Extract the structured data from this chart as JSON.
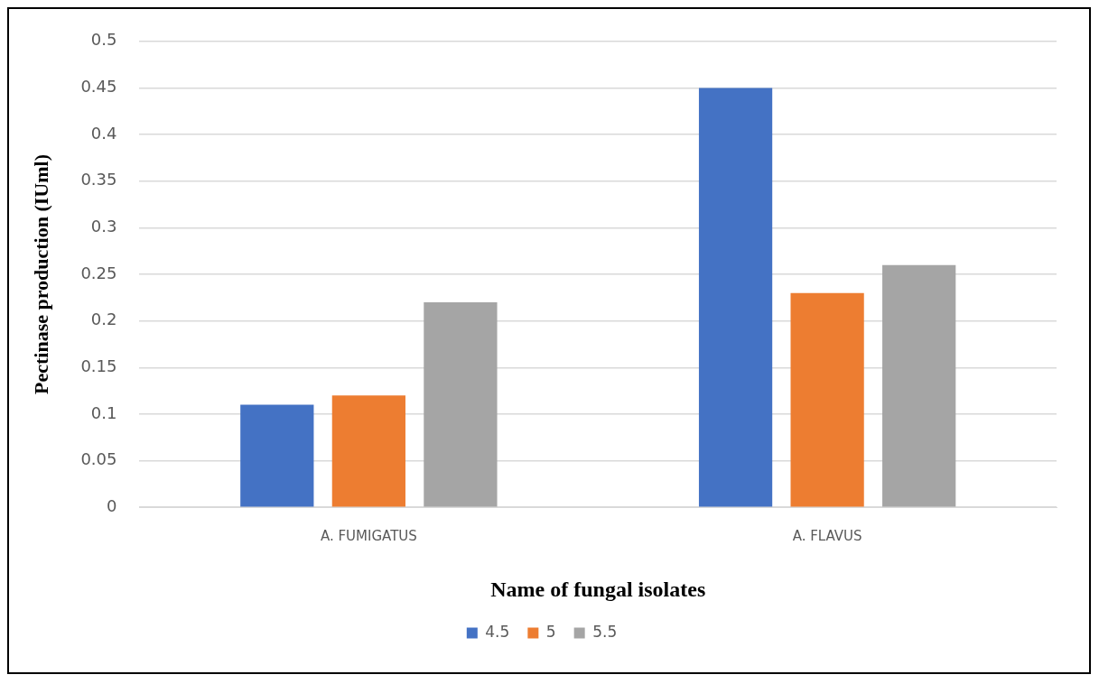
{
  "chart_data": {
    "type": "bar",
    "xlabel": "Name of fungal isolates",
    "ylabel": "Pectinase production (IUml)",
    "categories": [
      "A. FUMIGATUS",
      "A. FLAVUS"
    ],
    "series": [
      {
        "name": "4.5",
        "color": "#4472c4",
        "values": [
          0.11,
          0.45
        ]
      },
      {
        "name": "5",
        "color": "#ed7d31",
        "values": [
          0.12,
          0.23
        ]
      },
      {
        "name": "5.5",
        "color": "#a5a5a5",
        "values": [
          0.22,
          0.26
        ]
      }
    ],
    "ylim": [
      0,
      0.5
    ],
    "yticks": [
      0,
      0.05,
      0.1,
      0.15,
      0.2,
      0.25,
      0.3,
      0.35,
      0.4,
      0.45,
      0.5
    ],
    "grid": "y",
    "legend": "bottom"
  }
}
